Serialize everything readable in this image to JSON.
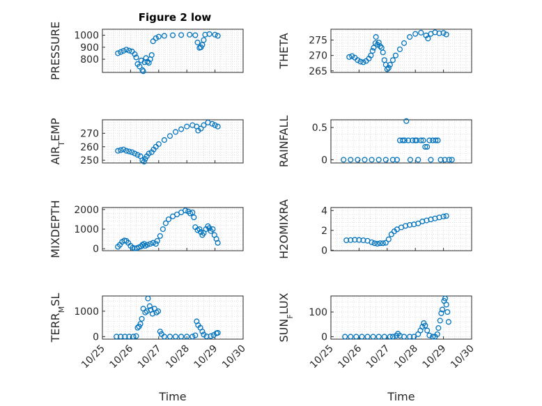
{
  "figure": {
    "title": "Figure 2 low",
    "colors": {
      "marker": "#0072BD",
      "axis": "#262626",
      "grid": "#d6d6d6"
    }
  },
  "chart_data": [
    {
      "type": "scatter",
      "title": "Figure 2 low",
      "ylabel": "PRESSURE",
      "ylim": [
        690,
        1050
      ],
      "yticks": [
        800,
        900,
        1000
      ],
      "xlim": [
        0,
        5
      ],
      "xlabel": "",
      "grid": true,
      "marker": "o",
      "points": [
        [
          0.55,
          850
        ],
        [
          0.65,
          860
        ],
        [
          0.75,
          870
        ],
        [
          0.85,
          880
        ],
        [
          0.95,
          872
        ],
        [
          1.05,
          865
        ],
        [
          1.15,
          842
        ],
        [
          1.2,
          815
        ],
        [
          1.25,
          760
        ],
        [
          1.32,
          740
        ],
        [
          1.38,
          790
        ],
        [
          1.42,
          710
        ],
        [
          1.45,
          700
        ],
        [
          1.5,
          775
        ],
        [
          1.55,
          810
        ],
        [
          1.6,
          780
        ],
        [
          1.65,
          770
        ],
        [
          1.7,
          800
        ],
        [
          1.75,
          835
        ],
        [
          1.8,
          950
        ],
        [
          1.9,
          975
        ],
        [
          2.0,
          988
        ],
        [
          2.2,
          995
        ],
        [
          2.5,
          1000
        ],
        [
          2.8,
          1002
        ],
        [
          3.1,
          1005
        ],
        [
          3.3,
          1000
        ],
        [
          3.38,
          940
        ],
        [
          3.45,
          895
        ],
        [
          3.5,
          900
        ],
        [
          3.55,
          920
        ],
        [
          3.6,
          960
        ],
        [
          3.65,
          1005
        ],
        [
          3.8,
          1010
        ],
        [
          4.0,
          1005
        ],
        [
          4.1,
          995
        ]
      ]
    },
    {
      "type": "scatter",
      "ylabel": "THETA",
      "ylim": [
        264.5,
        278.5
      ],
      "yticks": [
        265,
        270,
        275
      ],
      "xlim": [
        0,
        5
      ],
      "xlabel": "",
      "grid": true,
      "marker": "o",
      "points": [
        [
          0.65,
          269.5
        ],
        [
          0.75,
          269.8
        ],
        [
          0.85,
          269.3
        ],
        [
          0.95,
          268.5
        ],
        [
          1.05,
          268
        ],
        [
          1.15,
          267.8
        ],
        [
          1.25,
          268.2
        ],
        [
          1.35,
          269
        ],
        [
          1.42,
          270
        ],
        [
          1.48,
          271.5
        ],
        [
          1.52,
          272.5
        ],
        [
          1.58,
          274
        ],
        [
          1.6,
          276
        ],
        [
          1.65,
          273.5
        ],
        [
          1.7,
          274.2
        ],
        [
          1.75,
          273
        ],
        [
          1.8,
          272.5
        ],
        [
          1.85,
          271
        ],
        [
          1.9,
          268.5
        ],
        [
          1.95,
          267
        ],
        [
          2.0,
          265.5
        ],
        [
          2.05,
          266
        ],
        [
          2.1,
          267
        ],
        [
          2.2,
          268.5
        ],
        [
          2.3,
          270
        ],
        [
          2.45,
          272
        ],
        [
          2.6,
          274
        ],
        [
          2.8,
          276
        ],
        [
          3.0,
          277
        ],
        [
          3.2,
          277.4
        ],
        [
          3.38,
          276.5
        ],
        [
          3.45,
          275.5
        ],
        [
          3.55,
          277
        ],
        [
          3.7,
          277.5
        ],
        [
          3.85,
          277.2
        ],
        [
          4.0,
          277.3
        ],
        [
          4.1,
          276.8
        ]
      ]
    },
    {
      "type": "scatter",
      "ylabel": "AIR_TEMP",
      "ylim": [
        248,
        280
      ],
      "yticks": [
        250,
        260,
        270
      ],
      "xlim": [
        0,
        5
      ],
      "xlabel": "",
      "grid": true,
      "marker": "o",
      "points": [
        [
          0.55,
          257
        ],
        [
          0.65,
          257.5
        ],
        [
          0.75,
          258
        ],
        [
          0.85,
          257
        ],
        [
          0.95,
          256.5
        ],
        [
          1.05,
          256
        ],
        [
          1.15,
          255
        ],
        [
          1.25,
          254
        ],
        [
          1.35,
          253
        ],
        [
          1.42,
          250
        ],
        [
          1.48,
          249
        ],
        [
          1.52,
          251
        ],
        [
          1.58,
          253
        ],
        [
          1.65,
          255
        ],
        [
          1.75,
          256
        ],
        [
          1.82,
          258
        ],
        [
          1.9,
          260
        ],
        [
          2.0,
          262
        ],
        [
          2.2,
          265
        ],
        [
          2.4,
          268
        ],
        [
          2.6,
          271
        ],
        [
          2.8,
          273
        ],
        [
          3.0,
          275
        ],
        [
          3.2,
          276
        ],
        [
          3.35,
          275
        ],
        [
          3.4,
          272
        ],
        [
          3.5,
          273.5
        ],
        [
          3.6,
          276
        ],
        [
          3.75,
          278
        ],
        [
          3.9,
          277
        ],
        [
          4.0,
          276
        ],
        [
          4.1,
          275
        ]
      ]
    },
    {
      "type": "scatter",
      "ylabel": "RAINFALL",
      "ylim": [
        -0.05,
        0.62
      ],
      "yticks": [
        0,
        0.5
      ],
      "ytick_labels": [
        "0",
        "0.5"
      ],
      "xlim": [
        0,
        5
      ],
      "xlabel": "",
      "grid": true,
      "marker": "o",
      "points": [
        [
          0.45,
          0
        ],
        [
          0.7,
          0
        ],
        [
          0.95,
          0
        ],
        [
          1.2,
          0
        ],
        [
          1.45,
          0
        ],
        [
          1.7,
          0
        ],
        [
          1.95,
          0
        ],
        [
          2.2,
          0
        ],
        [
          2.35,
          0
        ],
        [
          2.45,
          0.3
        ],
        [
          2.55,
          0.3
        ],
        [
          2.62,
          0.3
        ],
        [
          2.68,
          0.6
        ],
        [
          2.75,
          0.3
        ],
        [
          2.82,
          0
        ],
        [
          2.9,
          0.3
        ],
        [
          3.0,
          0.3
        ],
        [
          3.05,
          0.3
        ],
        [
          3.1,
          0
        ],
        [
          3.2,
          0.3
        ],
        [
          3.28,
          0.3
        ],
        [
          3.35,
          0.2
        ],
        [
          3.42,
          0.2
        ],
        [
          3.5,
          0.3
        ],
        [
          3.55,
          0
        ],
        [
          3.62,
          0.3
        ],
        [
          3.72,
          0.3
        ],
        [
          3.8,
          0.3
        ],
        [
          3.9,
          0
        ],
        [
          4.05,
          0
        ],
        [
          4.2,
          0
        ],
        [
          4.3,
          0
        ]
      ]
    },
    {
      "type": "scatter",
      "ylabel": "MIXDEPTH",
      "ylim": [
        -100,
        2100
      ],
      "yticks": [
        0,
        1000,
        2000
      ],
      "xlim": [
        0,
        5
      ],
      "xlabel": "",
      "grid": true,
      "marker": "o",
      "points": [
        [
          0.55,
          100
        ],
        [
          0.62,
          200
        ],
        [
          0.7,
          350
        ],
        [
          0.78,
          420
        ],
        [
          0.85,
          400
        ],
        [
          0.92,
          300
        ],
        [
          1.0,
          150
        ],
        [
          1.08,
          50
        ],
        [
          1.15,
          20
        ],
        [
          1.22,
          30
        ],
        [
          1.3,
          80
        ],
        [
          1.38,
          120
        ],
        [
          1.42,
          200
        ],
        [
          1.48,
          250
        ],
        [
          1.52,
          150
        ],
        [
          1.6,
          200
        ],
        [
          1.7,
          250
        ],
        [
          1.8,
          300
        ],
        [
          1.9,
          250
        ],
        [
          1.95,
          400
        ],
        [
          2.05,
          650
        ],
        [
          2.15,
          1000
        ],
        [
          2.25,
          1300
        ],
        [
          2.35,
          1500
        ],
        [
          2.5,
          1650
        ],
        [
          2.65,
          1750
        ],
        [
          2.8,
          1850
        ],
        [
          2.95,
          1950
        ],
        [
          3.05,
          1900
        ],
        [
          3.12,
          1800
        ],
        [
          3.2,
          1850
        ],
        [
          3.25,
          1600
        ],
        [
          3.3,
          1100
        ],
        [
          3.38,
          950
        ],
        [
          3.45,
          1000
        ],
        [
          3.5,
          850
        ],
        [
          3.55,
          700
        ],
        [
          3.6,
          800
        ],
        [
          3.68,
          1000
        ],
        [
          3.75,
          1150
        ],
        [
          3.8,
          1050
        ],
        [
          3.85,
          900
        ],
        [
          3.92,
          1000
        ],
        [
          3.98,
          700
        ],
        [
          4.05,
          500
        ],
        [
          4.1,
          300
        ]
      ]
    },
    {
      "type": "scatter",
      "ylabel": "H2OMIXRA",
      "ylim": [
        -0.05,
        4.3
      ],
      "yticks": [
        0,
        2,
        4
      ],
      "xlim": [
        0,
        5
      ],
      "xlabel": "",
      "grid": true,
      "marker": "o",
      "points": [
        [
          0.55,
          1
        ],
        [
          0.7,
          1.02
        ],
        [
          0.85,
          1.05
        ],
        [
          1.0,
          1.03
        ],
        [
          1.15,
          1
        ],
        [
          1.3,
          0.95
        ],
        [
          1.45,
          0.8
        ],
        [
          1.55,
          0.7
        ],
        [
          1.65,
          0.65
        ],
        [
          1.75,
          0.7
        ],
        [
          1.85,
          0.7
        ],
        [
          1.95,
          0.75
        ],
        [
          2.05,
          1.1
        ],
        [
          2.15,
          1.6
        ],
        [
          2.25,
          1.9
        ],
        [
          2.35,
          2.1
        ],
        [
          2.5,
          2.3
        ],
        [
          2.65,
          2.45
        ],
        [
          2.8,
          2.55
        ],
        [
          2.95,
          2.6
        ],
        [
          3.1,
          2.7
        ],
        [
          3.25,
          2.9
        ],
        [
          3.4,
          3.0
        ],
        [
          3.55,
          3.1
        ],
        [
          3.7,
          3.2
        ],
        [
          3.85,
          3.3
        ],
        [
          4.0,
          3.4
        ],
        [
          4.1,
          3.45
        ]
      ]
    },
    {
      "type": "scatter",
      "ylabel": "TERR_MSL",
      "ylim": [
        -100,
        1600
      ],
      "yticks": [
        0,
        1000
      ],
      "xlim": [
        0,
        5
      ],
      "xlabel": "",
      "grid": true,
      "marker": "o",
      "points": [
        [
          0.5,
          0
        ],
        [
          0.65,
          0
        ],
        [
          0.8,
          0
        ],
        [
          0.95,
          0
        ],
        [
          1.1,
          0
        ],
        [
          1.2,
          20
        ],
        [
          1.25,
          350
        ],
        [
          1.3,
          400
        ],
        [
          1.35,
          500
        ],
        [
          1.4,
          700
        ],
        [
          1.45,
          1100
        ],
        [
          1.52,
          950
        ],
        [
          1.58,
          1000
        ],
        [
          1.62,
          1500
        ],
        [
          1.68,
          1200
        ],
        [
          1.72,
          1050
        ],
        [
          1.78,
          900
        ],
        [
          1.85,
          1100
        ],
        [
          1.92,
          950
        ],
        [
          1.98,
          1000
        ],
        [
          2.05,
          200
        ],
        [
          2.1,
          100
        ],
        [
          2.2,
          0
        ],
        [
          2.4,
          0
        ],
        [
          2.6,
          0
        ],
        [
          2.8,
          0
        ],
        [
          3.0,
          0
        ],
        [
          3.2,
          0
        ],
        [
          3.3,
          50
        ],
        [
          3.35,
          600
        ],
        [
          3.4,
          450
        ],
        [
          3.48,
          350
        ],
        [
          3.55,
          200
        ],
        [
          3.6,
          80
        ],
        [
          3.7,
          10
        ],
        [
          3.85,
          20
        ],
        [
          3.95,
          60
        ],
        [
          4.05,
          130
        ],
        [
          4.1,
          150
        ]
      ]
    },
    {
      "type": "scatter",
      "ylabel": "SUN_FLUX",
      "ylim": [
        -10,
        165
      ],
      "yticks": [
        0,
        100
      ],
      "xlim": [
        0,
        5
      ],
      "xlabel": "",
      "grid": true,
      "marker": "o",
      "points": [
        [
          0.5,
          0
        ],
        [
          0.7,
          0
        ],
        [
          0.9,
          0
        ],
        [
          1.1,
          0
        ],
        [
          1.3,
          0
        ],
        [
          1.5,
          0
        ],
        [
          1.7,
          0
        ],
        [
          1.9,
          0
        ],
        [
          2.1,
          0
        ],
        [
          2.2,
          0
        ],
        [
          2.32,
          4
        ],
        [
          2.38,
          12
        ],
        [
          2.45,
          4
        ],
        [
          2.6,
          0
        ],
        [
          2.8,
          0
        ],
        [
          2.95,
          0
        ],
        [
          3.1,
          10
        ],
        [
          3.18,
          25
        ],
        [
          3.25,
          40
        ],
        [
          3.3,
          55
        ],
        [
          3.35,
          45
        ],
        [
          3.42,
          25
        ],
        [
          3.5,
          5
        ],
        [
          3.62,
          0
        ],
        [
          3.7,
          0
        ],
        [
          3.78,
          10
        ],
        [
          3.82,
          35
        ],
        [
          3.88,
          65
        ],
        [
          3.92,
          95
        ],
        [
          3.96,
          110
        ],
        [
          4.02,
          145
        ],
        [
          4.06,
          155
        ],
        [
          4.1,
          130
        ],
        [
          4.14,
          100
        ],
        [
          4.18,
          60
        ]
      ]
    }
  ],
  "xaxis": {
    "label": "Time",
    "ticks": [
      0,
      1,
      2,
      3,
      4,
      5
    ],
    "tick_labels": [
      "10/25",
      "10/26",
      "10/27",
      "10/28",
      "10/29",
      "10/30"
    ]
  }
}
